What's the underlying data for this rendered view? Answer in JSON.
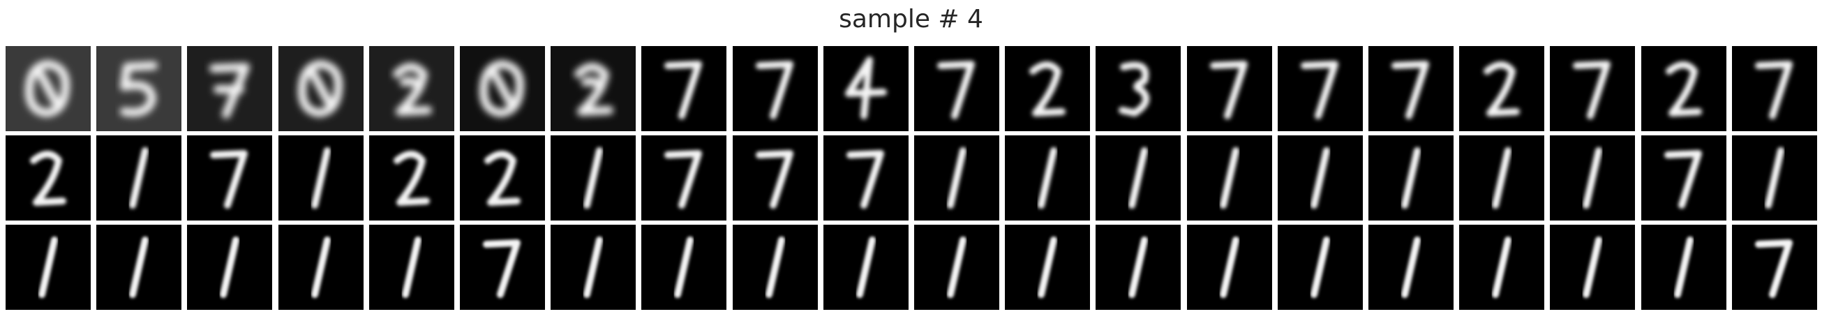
{
  "figure": {
    "title": "sample # 4"
  },
  "grid": {
    "rows": 3,
    "cols": 20,
    "colormap": "grayscale",
    "cells": [
      [
        "zero-blob",
        "five-blob",
        "seven-blob",
        "zero-blob",
        "two-blob",
        "zero-blob",
        "two-blob",
        "seven",
        "seven",
        "four",
        "seven",
        "two",
        "three",
        "seven",
        "seven",
        "seven",
        "two",
        "seven",
        "two",
        "seven"
      ],
      [
        "two",
        "one",
        "seven",
        "one",
        "two",
        "two",
        "one",
        "seven",
        "seven",
        "seven",
        "one",
        "one",
        "one",
        "one",
        "one",
        "one",
        "one",
        "one",
        "seven",
        "one"
      ],
      [
        "one",
        "one",
        "one",
        "one",
        "one",
        "seven",
        "one",
        "one",
        "one",
        "one",
        "one",
        "one",
        "one",
        "one",
        "one",
        "one",
        "one",
        "one",
        "one",
        "seven"
      ]
    ]
  }
}
